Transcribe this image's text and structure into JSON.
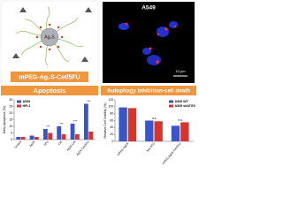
{
  "top_left": {
    "label": "mPEG-Ag₂S-Cet/5FU",
    "core_label": "Ag₂S"
  },
  "top_right": {
    "title": "A549",
    "scale_label": "10 μm"
  },
  "chart_data": [
    {
      "type": "bar",
      "title": "Apoptosis",
      "y_label": "Early Apoptosis (%)",
      "categories": [
        "Control",
        "Ag2S",
        "5FU",
        "Cet",
        "Ag2S-Cet",
        "Ag2S-Cet/5FU"
      ],
      "series": [
        {
          "name": "A549",
          "color": "#3a55c8",
          "values": [
            2,
            3,
            8,
            10,
            12,
            27
          ]
        },
        {
          "name": "HFL1",
          "color": "#d8342c",
          "values": [
            2,
            2,
            5,
            4,
            4,
            6
          ]
        }
      ],
      "annotations": [
        null,
        null,
        "***",
        "***",
        "***",
        "***"
      ],
      "ylim": [
        0,
        30
      ],
      "yticks": [
        0,
        5,
        10,
        15,
        20,
        25,
        30
      ],
      "legend": "upper left"
    },
    {
      "type": "bar",
      "title": "Autophagy inhibition-cell death",
      "y_label": "Relative Cell Viability (%)",
      "categories": [
        "mPEG-Ag2S",
        "free 5FU",
        "mPEG-Ag2S-Cet/5FU"
      ],
      "series": [
        {
          "name": "A549 WT",
          "color": "#3a55c8",
          "values": [
            98,
            60,
            45
          ]
        },
        {
          "name": "A549 shATG5",
          "color": "#d8342c",
          "values": [
            96,
            58,
            55
          ]
        }
      ],
      "annotations": [
        null,
        "n.s.",
        "n.s."
      ],
      "ylim": [
        0,
        120
      ],
      "yticks": [
        0,
        20,
        40,
        60,
        80,
        100,
        120
      ],
      "legend": "upper right"
    }
  ]
}
